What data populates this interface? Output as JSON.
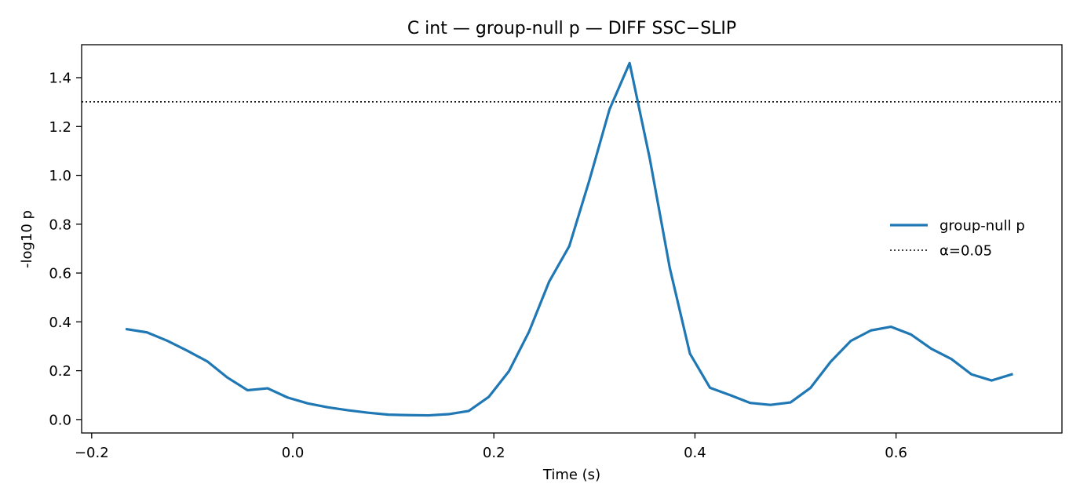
{
  "chart_data": {
    "type": "line",
    "title": "C int — group-null p — DIFF SSC−SLIP",
    "xlabel": "Time (s)",
    "ylabel": "-log10 p",
    "xlim": [
      -0.21,
      0.765
    ],
    "ylim": [
      -0.055,
      1.535
    ],
    "xticks": [
      -0.2,
      0.0,
      0.2,
      0.4,
      0.6
    ],
    "xtick_labels": [
      "−0.2",
      "0.0",
      "0.2",
      "0.4",
      "0.6"
    ],
    "yticks": [
      0.0,
      0.2,
      0.4,
      0.6,
      0.8,
      1.0,
      1.2,
      1.4
    ],
    "ytick_labels": [
      "0.0",
      "0.2",
      "0.4",
      "0.6",
      "0.8",
      "1.0",
      "1.2",
      "1.4"
    ],
    "grid": false,
    "legend_position": "center-right",
    "series": [
      {
        "name": "group-null p",
        "color": "#1f77b4",
        "style": "solid",
        "x": [
          -0.165,
          -0.145,
          -0.125,
          -0.105,
          -0.085,
          -0.065,
          -0.045,
          -0.025,
          -0.005,
          0.015,
          0.035,
          0.055,
          0.075,
          0.095,
          0.115,
          0.135,
          0.155,
          0.175,
          0.195,
          0.215,
          0.235,
          0.255,
          0.275,
          0.295,
          0.315,
          0.335,
          0.355,
          0.375,
          0.395,
          0.415,
          0.435,
          0.455,
          0.475,
          0.495,
          0.515,
          0.535,
          0.555,
          0.575,
          0.595,
          0.615,
          0.635,
          0.655,
          0.675,
          0.695,
          0.715
        ],
        "y": [
          0.37,
          0.357,
          0.323,
          0.282,
          0.238,
          0.172,
          0.12,
          0.128,
          0.09,
          0.066,
          0.05,
          0.038,
          0.028,
          0.02,
          0.018,
          0.017,
          0.022,
          0.035,
          0.093,
          0.198,
          0.36,
          0.565,
          0.71,
          0.98,
          1.27,
          1.46,
          1.07,
          0.62,
          0.27,
          0.13,
          0.1,
          0.068,
          0.06,
          0.07,
          0.13,
          0.237,
          0.322,
          0.365,
          0.38,
          0.348,
          0.29,
          0.248,
          0.185,
          0.16,
          0.185
        ]
      },
      {
        "name": "α=0.05",
        "color": "#000000",
        "style": "dotted",
        "y_constant": 1.301
      }
    ]
  }
}
